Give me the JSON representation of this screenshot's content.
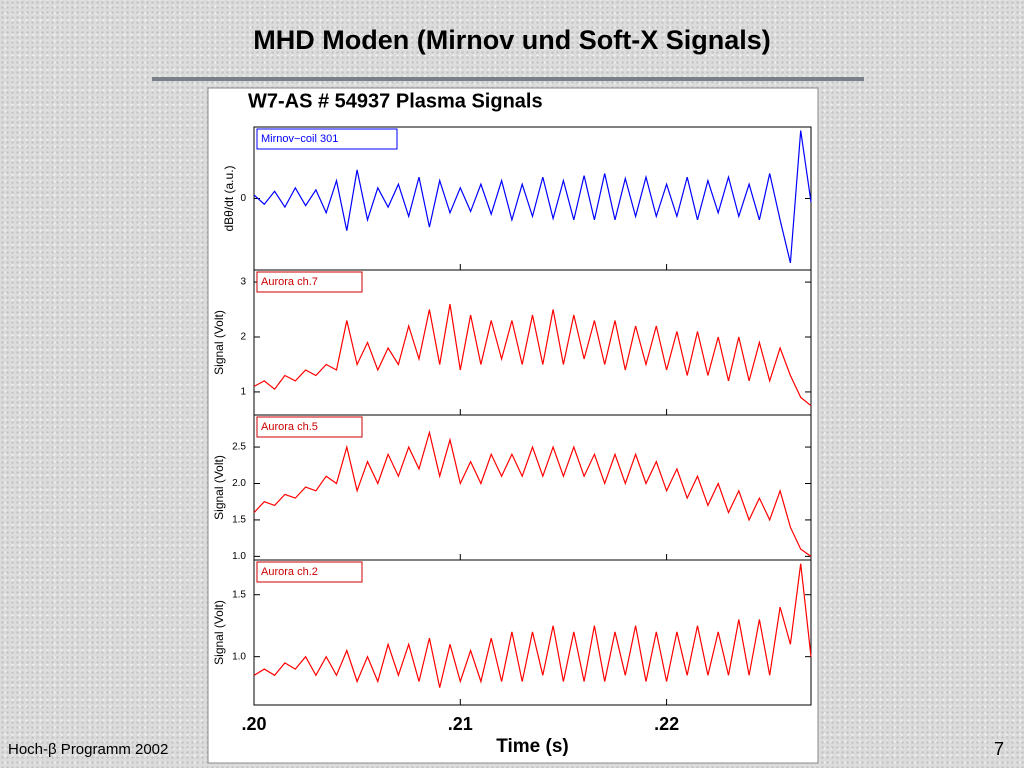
{
  "slide": {
    "title": "MHD Moden (Mirnov und Soft-X Signals)",
    "footer": "Hoch-β Programm 2002",
    "page": "7"
  },
  "chart_data": [
    {
      "type": "line",
      "title": "W7-AS # 54937 Plasma Signals",
      "ylabel": "dBθ/dt (a.u.)",
      "x": [
        0.2,
        0.2005,
        0.201,
        0.2015,
        0.202,
        0.2025,
        0.203,
        0.2035,
        0.204,
        0.2045,
        0.205,
        0.2055,
        0.206,
        0.2065,
        0.207,
        0.2075,
        0.208,
        0.2085,
        0.209,
        0.2095,
        0.21,
        0.2105,
        0.211,
        0.2115,
        0.212,
        0.2125,
        0.213,
        0.2135,
        0.214,
        0.2145,
        0.215,
        0.2155,
        0.216,
        0.2165,
        0.217,
        0.2175,
        0.218,
        0.2185,
        0.219,
        0.2195,
        0.22,
        0.2205,
        0.221,
        0.2215,
        0.222,
        0.2225,
        0.223,
        0.2235,
        0.224,
        0.2245,
        0.225,
        0.2255,
        0.226,
        0.2265,
        0.227
      ],
      "series": [
        {
          "name": "Mirnov−coil 301",
          "color": "#0000ff",
          "values": [
            0.05,
            -0.08,
            0.1,
            -0.12,
            0.15,
            -0.1,
            0.12,
            -0.2,
            0.25,
            -0.45,
            0.4,
            -0.3,
            0.15,
            -0.12,
            0.2,
            -0.25,
            0.3,
            -0.4,
            0.25,
            -0.2,
            0.15,
            -0.18,
            0.2,
            -0.22,
            0.25,
            -0.3,
            0.2,
            -0.25,
            0.3,
            -0.28,
            0.25,
            -0.3,
            0.32,
            -0.3,
            0.35,
            -0.3,
            0.28,
            -0.25,
            0.3,
            -0.25,
            0.2,
            -0.25,
            0.3,
            -0.3,
            0.25,
            -0.2,
            0.3,
            -0.25,
            0.2,
            -0.3,
            0.35,
            -0.3,
            -0.9,
            0.95,
            -0.05
          ]
        }
      ],
      "xlim": [
        0.2,
        0.227
      ],
      "ylim": [
        -1,
        1
      ],
      "yticks": [
        0
      ],
      "legend_color": "#0000ff"
    },
    {
      "type": "line",
      "ylabel": "Signal (Volt)",
      "x": [
        0.2,
        0.2005,
        0.201,
        0.2015,
        0.202,
        0.2025,
        0.203,
        0.2035,
        0.204,
        0.2045,
        0.205,
        0.2055,
        0.206,
        0.2065,
        0.207,
        0.2075,
        0.208,
        0.2085,
        0.209,
        0.2095,
        0.21,
        0.2105,
        0.211,
        0.2115,
        0.212,
        0.2125,
        0.213,
        0.2135,
        0.214,
        0.2145,
        0.215,
        0.2155,
        0.216,
        0.2165,
        0.217,
        0.2175,
        0.218,
        0.2185,
        0.219,
        0.2195,
        0.22,
        0.2205,
        0.221,
        0.2215,
        0.222,
        0.2225,
        0.223,
        0.2235,
        0.224,
        0.2245,
        0.225,
        0.2255,
        0.226,
        0.2265,
        0.227
      ],
      "series": [
        {
          "name": "Aurora ch.7",
          "color": "#ff0000",
          "values": [
            1.1,
            1.2,
            1.05,
            1.3,
            1.2,
            1.4,
            1.3,
            1.5,
            1.4,
            2.3,
            1.5,
            1.9,
            1.4,
            1.8,
            1.5,
            2.2,
            1.6,
            2.5,
            1.5,
            2.6,
            1.4,
            2.4,
            1.5,
            2.3,
            1.6,
            2.3,
            1.5,
            2.4,
            1.5,
            2.5,
            1.5,
            2.4,
            1.6,
            2.3,
            1.5,
            2.3,
            1.4,
            2.2,
            1.5,
            2.2,
            1.4,
            2.1,
            1.3,
            2.1,
            1.3,
            2.0,
            1.2,
            2.0,
            1.2,
            1.9,
            1.2,
            1.8,
            1.3,
            0.9,
            0.75
          ]
        }
      ],
      "xlim": [
        0.2,
        0.227
      ],
      "ylim": [
        0.58,
        3.22
      ],
      "yticks": [
        1,
        2,
        3
      ],
      "legend_color": "#cc0000"
    },
    {
      "type": "line",
      "ylabel": "Signal (Volt)",
      "x": [
        0.2,
        0.2005,
        0.201,
        0.2015,
        0.202,
        0.2025,
        0.203,
        0.2035,
        0.204,
        0.2045,
        0.205,
        0.2055,
        0.206,
        0.2065,
        0.207,
        0.2075,
        0.208,
        0.2085,
        0.209,
        0.2095,
        0.21,
        0.2105,
        0.211,
        0.2115,
        0.212,
        0.2125,
        0.213,
        0.2135,
        0.214,
        0.2145,
        0.215,
        0.2155,
        0.216,
        0.2165,
        0.217,
        0.2175,
        0.218,
        0.2185,
        0.219,
        0.2195,
        0.22,
        0.2205,
        0.221,
        0.2215,
        0.222,
        0.2225,
        0.223,
        0.2235,
        0.224,
        0.2245,
        0.225,
        0.2255,
        0.226,
        0.2265,
        0.227
      ],
      "series": [
        {
          "name": "Aurora ch.5",
          "color": "#ff0000",
          "values": [
            1.6,
            1.75,
            1.7,
            1.85,
            1.8,
            1.95,
            1.9,
            2.1,
            2.0,
            2.5,
            1.9,
            2.3,
            2.0,
            2.4,
            2.1,
            2.5,
            2.2,
            2.7,
            2.1,
            2.6,
            2.0,
            2.3,
            2.0,
            2.4,
            2.1,
            2.4,
            2.1,
            2.5,
            2.1,
            2.5,
            2.1,
            2.5,
            2.1,
            2.4,
            2.0,
            2.4,
            2.0,
            2.4,
            2.0,
            2.3,
            1.9,
            2.2,
            1.8,
            2.1,
            1.7,
            2.0,
            1.6,
            1.9,
            1.5,
            1.8,
            1.5,
            1.9,
            1.4,
            1.1,
            1.0
          ]
        }
      ],
      "xlim": [
        0.2,
        0.227
      ],
      "ylim": [
        0.95,
        2.94
      ],
      "yticks": [
        {
          "value": 1,
          "label": "1.0"
        },
        1.5,
        {
          "value": 2,
          "label": "2.0"
        },
        2.5
      ],
      "legend_color": "#cc0000"
    },
    {
      "type": "line",
      "ylabel": "Signal (Volt)",
      "xlabel": "Time (s)",
      "x": [
        0.2,
        0.2005,
        0.201,
        0.2015,
        0.202,
        0.2025,
        0.203,
        0.2035,
        0.204,
        0.2045,
        0.205,
        0.2055,
        0.206,
        0.2065,
        0.207,
        0.2075,
        0.208,
        0.2085,
        0.209,
        0.2095,
        0.21,
        0.2105,
        0.211,
        0.2115,
        0.212,
        0.2125,
        0.213,
        0.2135,
        0.214,
        0.2145,
        0.215,
        0.2155,
        0.216,
        0.2165,
        0.217,
        0.2175,
        0.218,
        0.2185,
        0.219,
        0.2195,
        0.22,
        0.2205,
        0.221,
        0.2215,
        0.222,
        0.2225,
        0.223,
        0.2235,
        0.224,
        0.2245,
        0.225,
        0.2255,
        0.226,
        0.2265,
        0.227
      ],
      "series": [
        {
          "name": "Aurora ch.2",
          "color": "#ff0000",
          "values": [
            0.85,
            0.9,
            0.85,
            0.95,
            0.9,
            1.0,
            0.85,
            1.0,
            0.85,
            1.05,
            0.8,
            1.0,
            0.8,
            1.1,
            0.85,
            1.1,
            0.8,
            1.15,
            0.75,
            1.1,
            0.8,
            1.05,
            0.8,
            1.15,
            0.8,
            1.2,
            0.8,
            1.2,
            0.85,
            1.25,
            0.8,
            1.2,
            0.8,
            1.25,
            0.8,
            1.2,
            0.85,
            1.25,
            0.8,
            1.2,
            0.8,
            1.2,
            0.85,
            1.25,
            0.85,
            1.2,
            0.85,
            1.3,
            0.85,
            1.3,
            0.85,
            1.4,
            1.1,
            1.75,
            1.0
          ]
        }
      ],
      "xlim": [
        0.2,
        0.227
      ],
      "ylim": [
        0.61,
        1.78
      ],
      "yticks": [
        {
          "value": 1,
          "label": "1.0"
        },
        1.5
      ],
      "xticks": [
        {
          "value": 0.2,
          "label": ".20"
        },
        {
          "value": 0.21,
          "label": ".21"
        },
        {
          "value": 0.22,
          "label": ".22"
        }
      ],
      "legend_color": "#cc0000"
    }
  ]
}
